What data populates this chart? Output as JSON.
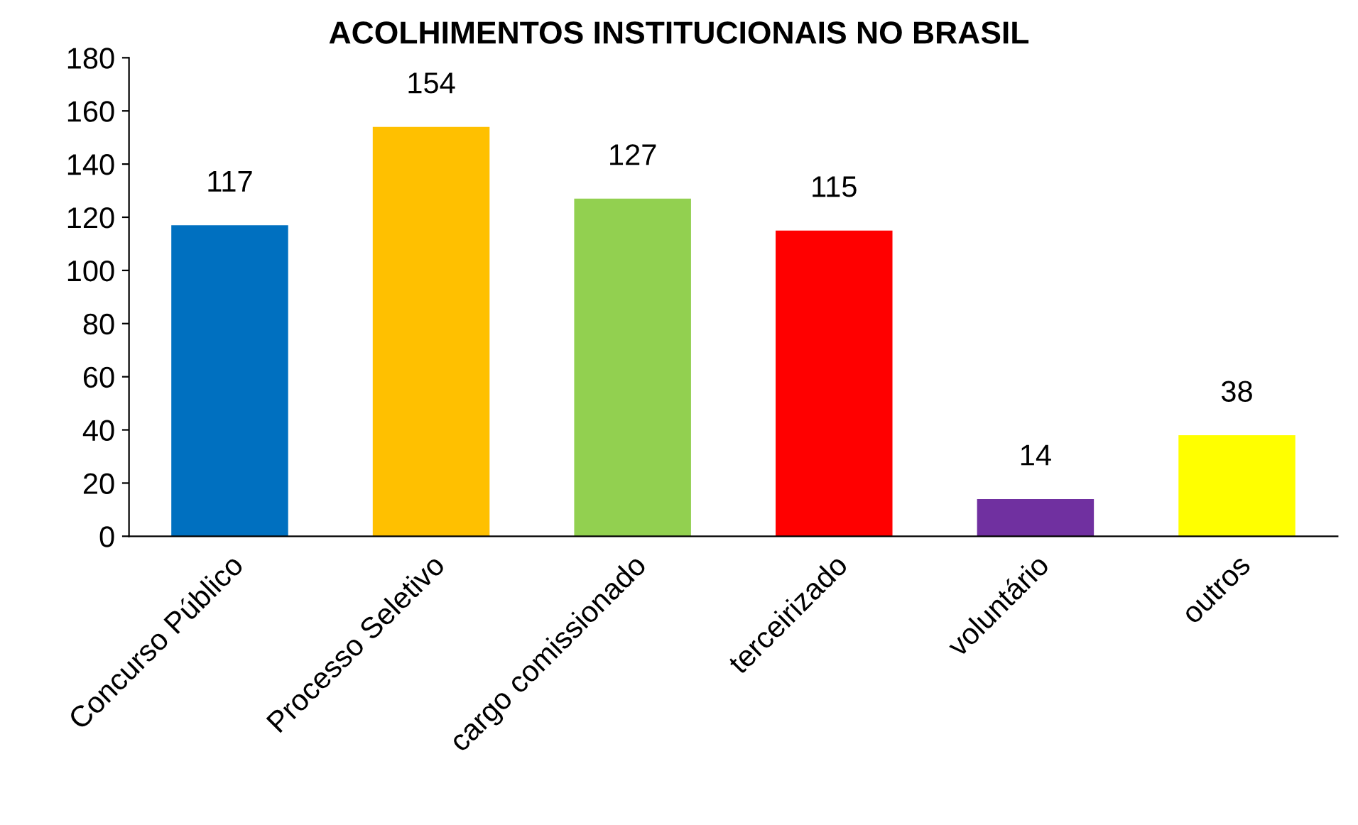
{
  "chart_data": {
    "type": "bar",
    "title": "ACOLHIMENTOS INSTITUCIONAIS NO BRASIL",
    "categories": [
      "Concurso Público",
      "Processo Seletivo",
      "cargo comissionado",
      "terceirizado",
      "voluntário",
      "outros"
    ],
    "values": [
      117,
      154,
      127,
      115,
      14,
      38
    ],
    "colors": [
      "#0070c0",
      "#ffc000",
      "#92d050",
      "#ff0000",
      "#7030a0",
      "#ffff00"
    ],
    "ylim": [
      0,
      180
    ],
    "yticks": [
      0,
      20,
      40,
      60,
      80,
      100,
      120,
      140,
      160,
      180
    ],
    "grid": false,
    "data_labels": true
  }
}
